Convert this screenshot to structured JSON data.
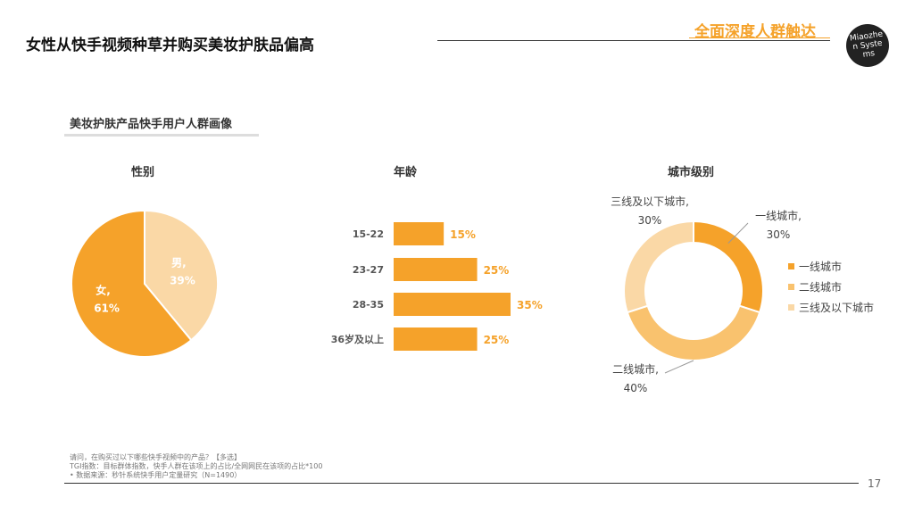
{
  "header": {
    "title": "女性从快手视频种草并购买美妆护肤品偏高",
    "tag": "全面深度人群触达",
    "logo_text": "Miaozhen Systems"
  },
  "section": {
    "title": "美妆护肤产品快手用户人群画像"
  },
  "colors": {
    "dark": "#F5A22A",
    "mid": "#F9C26E",
    "light": "#FAD8A6",
    "accent": "#F5A22A"
  },
  "chart_data": [
    {
      "type": "pie",
      "title": "性别",
      "slices": [
        {
          "label": "女,",
          "value": 61,
          "display": "61%"
        },
        {
          "label": "男,",
          "value": 39,
          "display": "39%"
        }
      ]
    },
    {
      "type": "bar",
      "title": "年龄",
      "categories": [
        "15-22",
        "23-27",
        "28-35",
        "36岁及以上"
      ],
      "values": [
        15,
        25,
        35,
        25
      ],
      "value_labels": [
        "15%",
        "25%",
        "35%",
        "25%"
      ]
    },
    {
      "type": "pie",
      "title": "城市级别",
      "slices": [
        {
          "label": "一线城市,",
          "value": 30,
          "display": "30%"
        },
        {
          "label": "二线城市,",
          "value": 40,
          "display": "40%"
        },
        {
          "label": "三线及以下城市,",
          "value": 30,
          "display": "30%"
        }
      ],
      "legend": [
        "一线城市",
        "二线城市",
        "三线及以下城市"
      ],
      "legend_placement": "right"
    }
  ],
  "footnotes": [
    "请问，在购买过以下哪些快手视频中的产品？【多选】",
    "TGI指数：目标群体指数，快手人群在该项上的占比/全网网民在该项的占比*100",
    "•   数据来源：秒针系统快手用户定量研究（N=1490）"
  ],
  "page_number": "17"
}
